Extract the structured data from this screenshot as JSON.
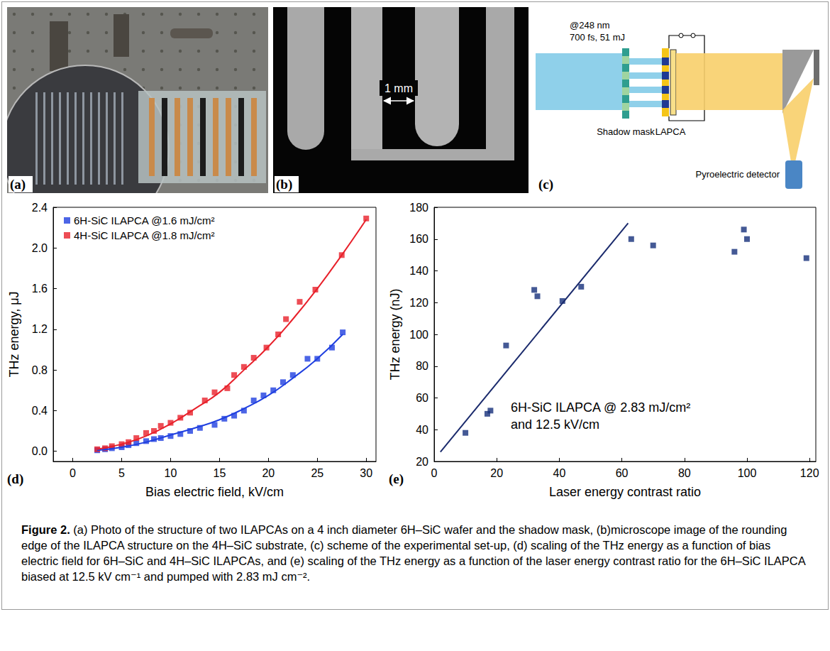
{
  "figure": {
    "panels": {
      "a": {
        "label": "(a)"
      },
      "b": {
        "label": "(b)",
        "scale_bar": "1 mm"
      },
      "c": {
        "label": "(c)",
        "beam_wavelength": "@248 nm",
        "beam_pulse": "700 fs, 51 mJ",
        "mask": "Shadow mask",
        "antenna": "LAPCA",
        "detector": "Pyroelectric detector"
      }
    },
    "caption": {
      "lead": "Figure 2.",
      "text": "(a) Photo of the structure of two ILAPCAs on a 4 inch diameter 6H–SiC wafer and the shadow mask, (b)microscope image of the rounding edge of the ILAPCA structure on the 4H–SiC substrate, (c) scheme of the experimental set-up, (d) scaling of the THz energy as a function of bias electric field for 6H–SiC and 4H–SiC ILAPCAs, and (e) scaling of the THz energy as a function of the laser energy contrast ratio for the 6H–SiC ILAPCA biased at 12.5 kV cm⁻¹ and pumped with 2.83 mJ cm⁻²."
    }
  },
  "chart_data": [
    {
      "type": "scatter",
      "panel": "(d)",
      "x_label": "Bias electric field, kV/cm",
      "y_label": "THz energy, μJ",
      "xlim": [
        -2,
        31
      ],
      "xticks": [
        0,
        5,
        10,
        15,
        20,
        25,
        30
      ],
      "ylim": [
        -0.1,
        2.4
      ],
      "yticks": [
        {
          "value": 0,
          "label": "0.0"
        },
        0.4,
        0.8,
        1.2,
        1.6,
        {
          "value": 2,
          "label": "2.0"
        },
        2.4
      ],
      "legend": "upper left",
      "grid": false,
      "series": [
        {
          "name": "6H-SiC ILAPCA @1.6 mJ/cm²",
          "type": "scatter",
          "color": "#1f3fe0",
          "marker": "square",
          "x": [
            2.5,
            3.3,
            4,
            5,
            5.7,
            6.5,
            7.5,
            8.3,
            9,
            10,
            11,
            12,
            13,
            14.5,
            15.5,
            16.5,
            17.5,
            18.5,
            19.5,
            20.5,
            21.5,
            22.5,
            24,
            25,
            26.5,
            27.6
          ],
          "values": [
            0.01,
            0.02,
            0.03,
            0.04,
            0.06,
            0.08,
            0.1,
            0.12,
            0.13,
            0.15,
            0.17,
            0.2,
            0.23,
            0.26,
            0.32,
            0.35,
            0.4,
            0.5,
            0.55,
            0.6,
            0.68,
            0.75,
            0.91,
            0.91,
            1.02,
            1.17
          ]
        },
        {
          "name": "4H-SiC ILAPCA @1.8 mJ/cm²",
          "type": "scatter",
          "color": "#e8202a",
          "marker": "square",
          "x": [
            2.5,
            3.3,
            4,
            5,
            5.7,
            6.5,
            7.5,
            8.3,
            9,
            10,
            11,
            12,
            13.5,
            14.5,
            15.8,
            16.5,
            17.5,
            18.5,
            19.8,
            21,
            21.8,
            23.2,
            24.8,
            27.5,
            30
          ],
          "values": [
            0.02,
            0.03,
            0.05,
            0.07,
            0.09,
            0.13,
            0.18,
            0.2,
            0.25,
            0.28,
            0.33,
            0.38,
            0.5,
            0.58,
            0.62,
            0.75,
            0.83,
            0.92,
            1.02,
            1.15,
            1.3,
            1.47,
            1.59,
            1.93,
            2.29
          ]
        },
        {
          "type": "line",
          "color": "#1f3fe0",
          "line_style": "solid",
          "x": [
            2.5,
            5,
            7.5,
            10,
            12.5,
            15,
            17.5,
            20,
            22.5,
            25,
            27.6
          ],
          "values": [
            0.01,
            0.04,
            0.09,
            0.16,
            0.23,
            0.31,
            0.42,
            0.55,
            0.72,
            0.91,
            1.15
          ]
        },
        {
          "type": "line",
          "color": "#e8202a",
          "line_style": "solid",
          "x": [
            2.5,
            5,
            7.5,
            10,
            12.5,
            15,
            17.5,
            20,
            22.5,
            25,
            27.5,
            30
          ],
          "values": [
            0.02,
            0.07,
            0.15,
            0.27,
            0.42,
            0.58,
            0.8,
            1.03,
            1.3,
            1.6,
            1.93,
            2.28
          ]
        }
      ]
    },
    {
      "type": "scatter",
      "panel": "(e)",
      "x_label": "Laser energy contrast ratio",
      "y_label": "THz energy (nJ)",
      "xlim": [
        0,
        122
      ],
      "xticks": [
        0,
        20,
        40,
        60,
        80,
        100,
        120
      ],
      "ylim": [
        20,
        180
      ],
      "yticks": [
        20,
        40,
        60,
        80,
        100,
        120,
        140,
        160,
        180
      ],
      "grid": false,
      "annotations": [
        "6H-SiC ILAPCA @ 2.83 mJ/cm²",
        "and 12.5 kV/cm"
      ],
      "series": [
        {
          "type": "scatter",
          "color": "#15307a",
          "marker": "square",
          "x": [
            10,
            17,
            18,
            23,
            32,
            33,
            41,
            47,
            63,
            70,
            96,
            99,
            100,
            119
          ],
          "values": [
            38,
            50,
            52,
            93,
            128,
            124,
            121,
            130,
            160,
            156,
            152,
            166,
            160,
            148
          ]
        },
        {
          "type": "line",
          "color": "#1a2a6c",
          "line_style": "solid",
          "x": [
            2,
            62
          ],
          "values": [
            26,
            170
          ]
        }
      ]
    }
  ]
}
